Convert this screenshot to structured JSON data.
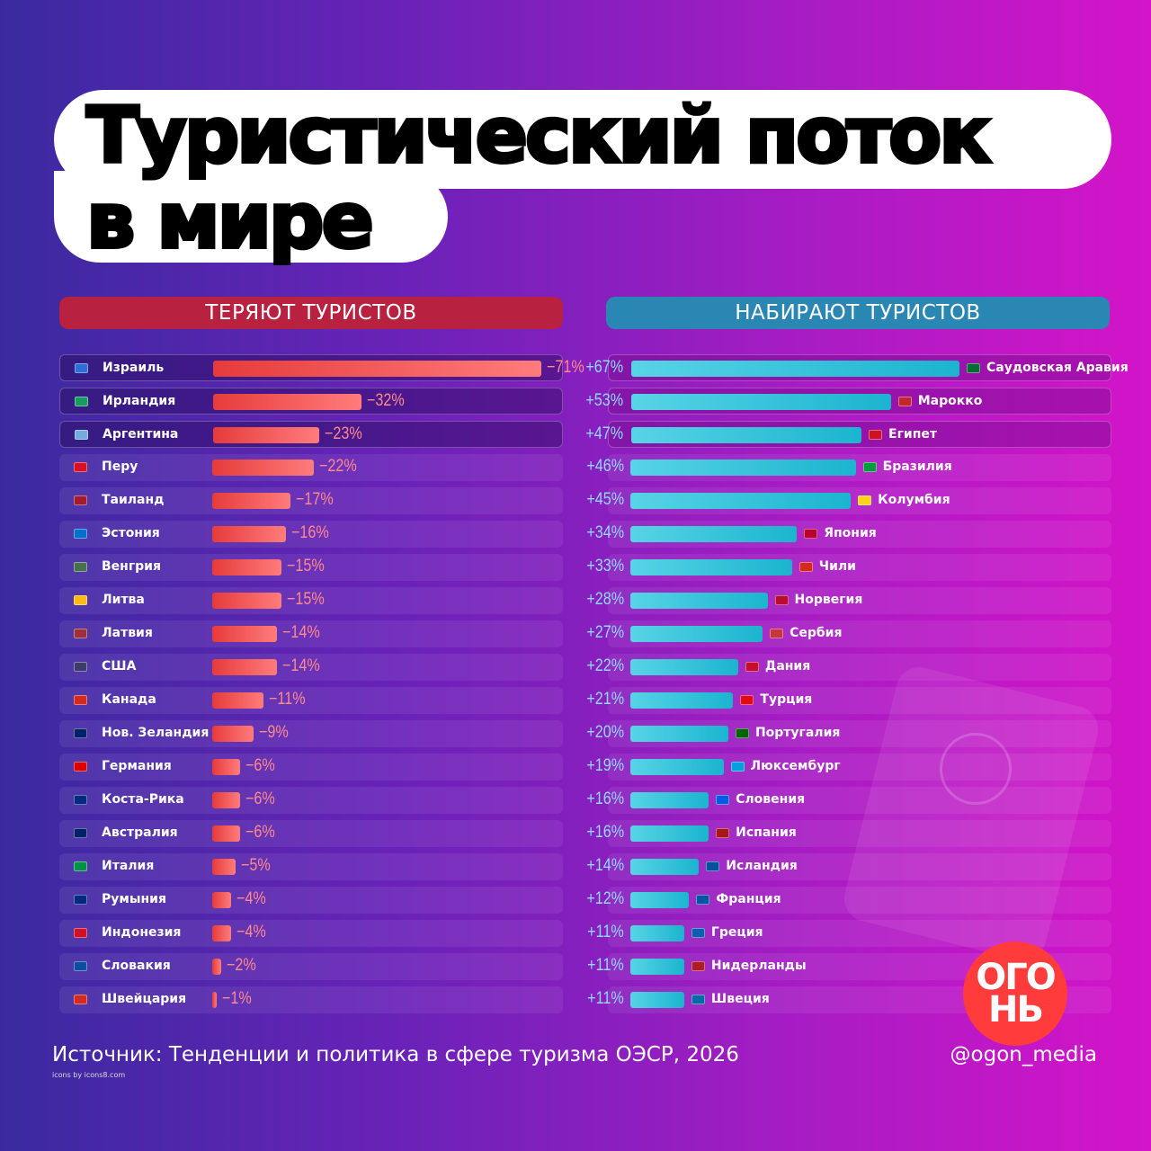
{
  "title": {
    "line1": "Туристический поток",
    "line2": "в мире"
  },
  "chart_data": [
    {
      "type": "bar",
      "title": "ТЕРЯЮТ ТУРИСТОВ",
      "categories": [
        "Израиль",
        "Ирландия",
        "Аргентина",
        "Перу",
        "Таиланд",
        "Эстония",
        "Венгрия",
        "Литва",
        "Латвия",
        "США",
        "Канада",
        "Нов. Зеландия",
        "Германия",
        "Коста-Рика",
        "Австралия",
        "Италия",
        "Румыния",
        "Индонезия",
        "Словакия",
        "Швейцария"
      ],
      "values": [
        -71,
        -32,
        -23,
        -22,
        -17,
        -16,
        -15,
        -15,
        -14,
        -14,
        -11,
        -9,
        -6,
        -6,
        -6,
        -5,
        -4,
        -4,
        -2,
        -1
      ],
      "labels": [
        "−71%",
        "−32%",
        "−23%",
        "−22%",
        "−17%",
        "−16%",
        "−15%",
        "−15%",
        "−14%",
        "−14%",
        "−11%",
        "−9%",
        "−6%",
        "−6%",
        "−6%",
        "−5%",
        "−4%",
        "−4%",
        "−2%",
        "−1%"
      ],
      "flag_colors": [
        "#2d6fd6",
        "#169b62",
        "#74acdf",
        "#d91023",
        "#a51931",
        "#0072ce",
        "#477050",
        "#fdb913",
        "#9e3039",
        "#3c3b6e",
        "#d52b1e",
        "#012169",
        "#dd0000",
        "#002b7f",
        "#012169",
        "#009246",
        "#002b7f",
        "#ce1126",
        "#0b4ea2",
        "#d52b1e"
      ],
      "color": "#e63b3b"
    },
    {
      "type": "bar",
      "title": "НАБИРАЮТ ТУРИСТОВ",
      "categories": [
        "Саудовская Аравия",
        "Марокко",
        "Египет",
        "Бразилия",
        "Колумбия",
        "Япония",
        "Чили",
        "Норвегия",
        "Сербия",
        "Дания",
        "Турция",
        "Португалия",
        "Люксембург",
        "Словения",
        "Испания",
        "Исландия",
        "Франция",
        "Греция",
        "Нидерланды",
        "Швеция"
      ],
      "values": [
        67,
        53,
        47,
        46,
        45,
        34,
        33,
        28,
        27,
        22,
        21,
        20,
        19,
        16,
        16,
        14,
        12,
        11,
        11,
        11
      ],
      "labels": [
        "+67%",
        "+53%",
        "+47%",
        "+46%",
        "+45%",
        "+34%",
        "+33%",
        "+28%",
        "+27%",
        "+22%",
        "+21%",
        "+20%",
        "+19%",
        "+16%",
        "+16%",
        "+14%",
        "+12%",
        "+11%",
        "+11%",
        "+11%"
      ],
      "flag_colors": [
        "#006c35",
        "#c1272d",
        "#ce1126",
        "#009c3b",
        "#fcd116",
        "#bc002d",
        "#d52b1e",
        "#ba0c2f",
        "#c6363c",
        "#c60c30",
        "#e30a17",
        "#006600",
        "#00a1de",
        "#005ce5",
        "#aa151b",
        "#02529c",
        "#0055a4",
        "#0d5eaf",
        "#ae1c28",
        "#006aa7"
      ],
      "color": "#1bb4cf"
    }
  ],
  "source": "Источник: Тенденции и политика в сфере туризма ОЭСР, 2026",
  "icons_credit": "icons by icons8.com",
  "handle": "@ogon_media",
  "logo_text": [
    "ОГО",
    "НЬ"
  ]
}
